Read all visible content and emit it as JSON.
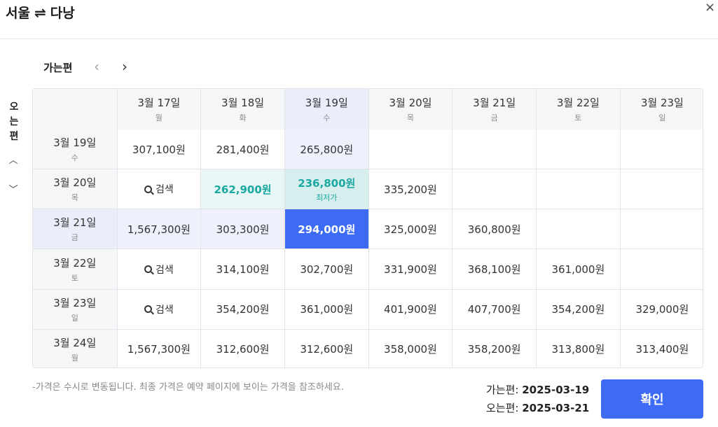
{
  "header": {
    "origin": "서울",
    "swap_icon": "⇌",
    "destination": "다낭",
    "close_icon": "×"
  },
  "outbound": {
    "label": "가는편",
    "prev_icon": "‹",
    "next_icon": "›"
  },
  "inbound": {
    "label_chars": [
      "오",
      "는",
      "편"
    ],
    "up_icon": "︿",
    "down_icon": "﹀"
  },
  "columns": [
    {
      "date": "3월 17일",
      "dow": "월"
    },
    {
      "date": "3월 18일",
      "dow": "화"
    },
    {
      "date": "3월 19일",
      "dow": "수"
    },
    {
      "date": "3월 20일",
      "dow": "목"
    },
    {
      "date": "3월 21일",
      "dow": "금"
    },
    {
      "date": "3월 22일",
      "dow": "토"
    },
    {
      "date": "3월 23일",
      "dow": "일"
    }
  ],
  "rows": [
    {
      "date": "3월 19일",
      "dow": "수",
      "cells": [
        "307,100원",
        "281,400원",
        "265,800원",
        "",
        "",
        "",
        ""
      ]
    },
    {
      "date": "3월 20일",
      "dow": "목",
      "cells": [
        "검색",
        "262,900원",
        "236,800원",
        "335,200원",
        "",
        "",
        ""
      ]
    },
    {
      "date": "3월 21일",
      "dow": "금",
      "cells": [
        "1,567,300원",
        "303,300원",
        "294,000원",
        "325,000원",
        "360,800원",
        "",
        ""
      ]
    },
    {
      "date": "3월 22일",
      "dow": "토",
      "cells": [
        "검색",
        "314,100원",
        "302,700원",
        "331,900원",
        "368,100원",
        "361,000원",
        ""
      ]
    },
    {
      "date": "3월 23일",
      "dow": "일",
      "cells": [
        "검색",
        "354,200원",
        "361,000원",
        "401,900원",
        "407,700원",
        "354,200원",
        "329,000원"
      ]
    },
    {
      "date": "3월 24일",
      "dow": "월",
      "cells": [
        "1,567,300원",
        "312,600원",
        "312,600원",
        "358,000원",
        "358,200원",
        "313,800원",
        "313,400원"
      ]
    }
  ],
  "selected": {
    "row": 2,
    "col": 2
  },
  "lowest": {
    "row": 1,
    "col": 2,
    "tag": "최저가"
  },
  "lowest_row_highlight": {
    "row": 1,
    "col": 1
  },
  "search_label": "검색",
  "footnote": "-가격은 수시로 변동됩니다. 최종 가격은 예약 페이지에 보이는 가격을 참조하세요.",
  "summary": {
    "outbound_label": "가는편:",
    "outbound_date": "2025-03-19",
    "inbound_label": "오는편:",
    "inbound_date": "2025-03-21"
  },
  "confirm_label": "확인",
  "colors": {
    "accent": "#3d6bf6",
    "lowest": "#1aa8a0"
  }
}
